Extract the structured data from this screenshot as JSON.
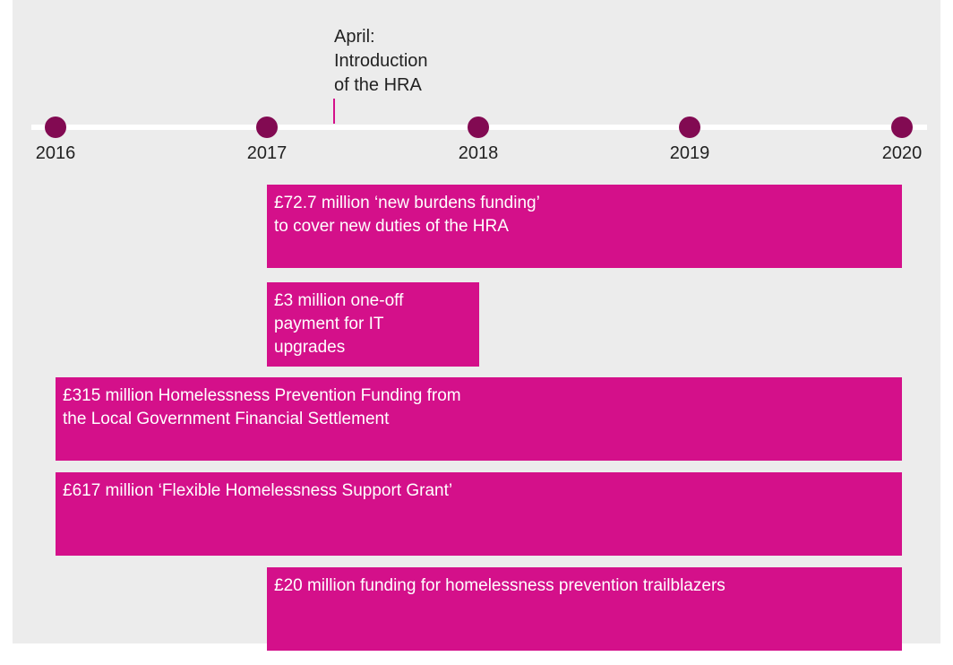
{
  "timeline": {
    "years": [
      "2016",
      "2017",
      "2018",
      "2019",
      "2020"
    ],
    "annotation": [
      "April:",
      "Introduction",
      "of the HRA"
    ],
    "bars": [
      {
        "lines": [
          "£72.7 million ‘new burdens funding’",
          "to cover new duties of the HRA"
        ]
      },
      {
        "lines": [
          "£3 million one-off",
          "payment for IT",
          "upgrades"
        ]
      },
      {
        "lines": [
          "£315 million Homelessness Prevention Funding from",
          "the Local Government Financial Settlement"
        ]
      },
      {
        "lines": [
          "£617 million ‘Flexible Homelessness Support Grant’"
        ]
      },
      {
        "lines": [
          "£20 million funding for homelessness prevention trailblazers"
        ]
      }
    ]
  }
}
